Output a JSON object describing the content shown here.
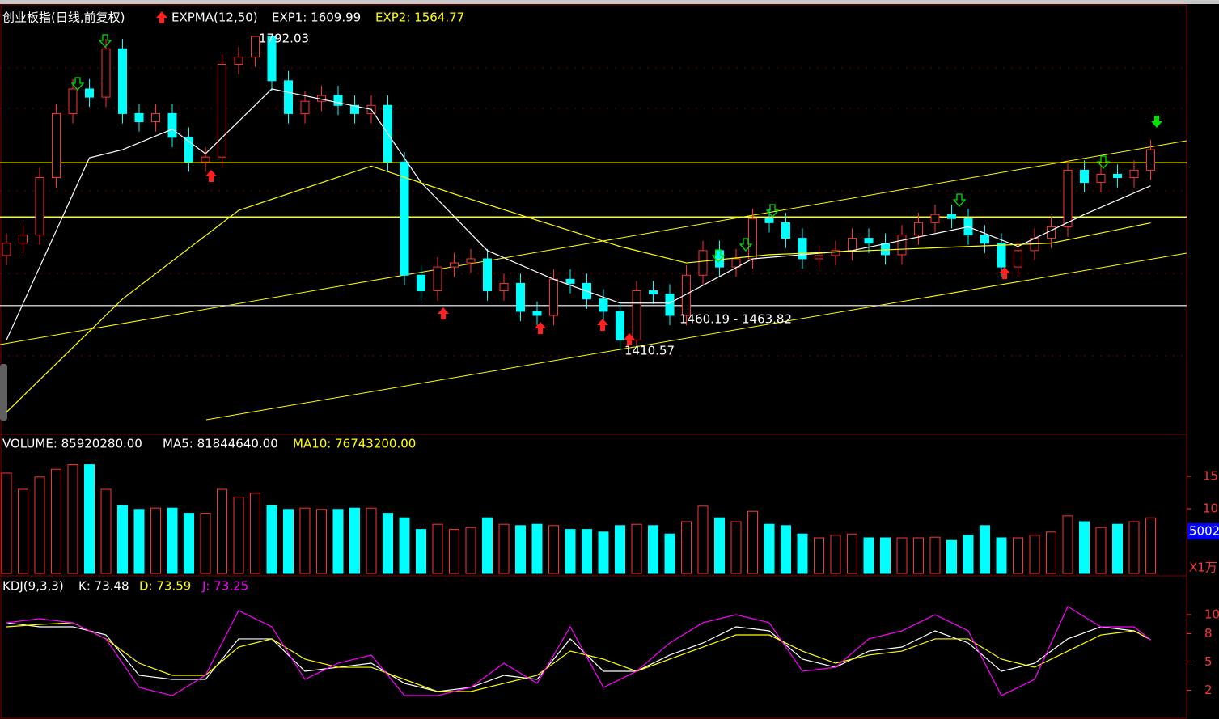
{
  "header": {
    "title": "创业板指(日线,前复权)",
    "indicator": "EXPMA(12,50)",
    "exp1": "EXP1: 1609.99",
    "exp2": "EXP2: 1564.77"
  },
  "chart_data": [
    {
      "type": "candlestick",
      "ylim": [
        1309.04,
        1824.56
      ],
      "up_color": "#ff3232",
      "down_color": "#00ffff",
      "open": [
        1525,
        1540,
        1550,
        1620,
        1698,
        1728,
        1718,
        1777,
        1698,
        1688,
        1698,
        1669,
        1639,
        1645,
        1758,
        1767,
        1792,
        1738,
        1698,
        1713,
        1720,
        1708,
        1698,
        1708,
        1639,
        1501,
        1482,
        1511,
        1516,
        1521,
        1482,
        1491,
        1457,
        1452,
        1496,
        1491,
        1472,
        1457,
        1422,
        1482,
        1478,
        1452,
        1501,
        1531,
        1511,
        1521,
        1570,
        1565,
        1546,
        1521,
        1525,
        1531,
        1546,
        1540,
        1526,
        1550,
        1565,
        1575,
        1570,
        1550,
        1540,
        1511,
        1531,
        1546,
        1560,
        1629,
        1614,
        1624,
        1620,
        1629
      ],
      "high": [
        1552,
        1562,
        1632,
        1710,
        1740,
        1740,
        1789,
        1789,
        1710,
        1710,
        1710,
        1681,
        1657,
        1770,
        1779,
        1792.03,
        1792,
        1750,
        1725,
        1732,
        1732,
        1720,
        1720,
        1720,
        1651,
        1513,
        1523,
        1528,
        1533,
        1533,
        1503,
        1503,
        1469,
        1508,
        1508,
        1503,
        1484,
        1469,
        1494,
        1494,
        1490,
        1513,
        1543,
        1543,
        1533,
        1582,
        1582,
        1577,
        1558,
        1537,
        1543,
        1558,
        1558,
        1552,
        1562,
        1577,
        1587,
        1587,
        1582,
        1562,
        1552,
        1543,
        1558,
        1572,
        1641,
        1641,
        1636,
        1636,
        1641,
        1666
      ],
      "low": [
        1513,
        1528,
        1538,
        1608,
        1686,
        1706,
        1706,
        1686,
        1676,
        1676,
        1657,
        1627,
        1627,
        1633,
        1746,
        1755,
        1726,
        1686,
        1686,
        1701,
        1696,
        1686,
        1686,
        1627,
        1489,
        1470,
        1470,
        1499,
        1504,
        1470,
        1470,
        1445,
        1440,
        1440,
        1479,
        1460,
        1445,
        1410.57,
        1414,
        1466,
        1440,
        1440,
        1489,
        1499,
        1499,
        1509,
        1553,
        1534,
        1509,
        1509,
        1513,
        1519,
        1528,
        1514,
        1514,
        1538,
        1553,
        1558,
        1538,
        1528,
        1499,
        1499,
        1519,
        1534,
        1548,
        1602,
        1602,
        1608,
        1608,
        1617
      ],
      "close": [
        1540,
        1550,
        1620,
        1698,
        1728,
        1718,
        1777,
        1698,
        1688,
        1698,
        1669,
        1639,
        1645,
        1758,
        1767,
        1792,
        1738,
        1698,
        1713,
        1720,
        1708,
        1698,
        1708,
        1639,
        1501,
        1482,
        1511,
        1516,
        1521,
        1482,
        1491,
        1457,
        1452,
        1496,
        1491,
        1472,
        1457,
        1422,
        1482,
        1478,
        1452,
        1501,
        1531,
        1511,
        1521,
        1570,
        1565,
        1546,
        1521,
        1525,
        1531,
        1546,
        1540,
        1526,
        1550,
        1565,
        1575,
        1570,
        1550,
        1540,
        1511,
        1531,
        1546,
        1560,
        1629,
        1614,
        1624,
        1620,
        1629,
        1654
      ],
      "lines": [
        {
          "color": "#ffffff",
          "x": [
            0,
            5,
            7,
            10,
            12,
            16,
            22,
            25,
            29,
            33,
            37,
            40,
            45,
            51,
            58,
            61,
            65,
            69
          ],
          "values": [
            1422,
            1644,
            1654,
            1679,
            1649,
            1728,
            1703,
            1614,
            1531,
            1496,
            1467,
            1467,
            1521,
            1531,
            1560,
            1536,
            1575,
            1609.99
          ]
        },
        {
          "color": "#ffff00",
          "x": [
            0,
            7,
            14,
            22,
            27,
            37,
            41,
            46,
            58,
            63,
            69
          ],
          "values": [
            1334,
            1472,
            1580,
            1634,
            1600,
            1536,
            1516,
            1526,
            1536,
            1540,
            1564.77
          ]
        }
      ],
      "levels": [
        {
          "value": 1638,
          "color": "#ffff00"
        },
        {
          "value": 1572,
          "color": "#ffff00"
        },
        {
          "value": 1464,
          "color": "#c0c0c0"
        }
      ],
      "annotations": [
        "1792.03",
        "1410.57",
        "1460.19 - 1463.82"
      ]
    },
    {
      "type": "bar",
      "title": "VOLUME: 85920280.00",
      "ma5": "MA5: 81844640.00",
      "ma10": "MA10: 76743200.00",
      "ylim": [
        0,
        211250000
      ],
      "yticks": [
        {
          "value": 150000000,
          "label": "15"
        },
        {
          "value": 100000000,
          "label": "10"
        }
      ],
      "current": "5002",
      "unit": "X1万",
      "values": [
        155000000,
        130000000,
        149000000,
        161000000,
        168000000,
        168000000,
        130000000,
        105000000,
        99000000,
        101000000,
        101000000,
        93000000,
        93000000,
        130000000,
        118000000,
        124000000,
        105000000,
        99000000,
        101000000,
        99000000,
        99000000,
        101000000,
        101000000,
        93000000,
        86000000,
        68000000,
        76000000,
        68000000,
        71000000,
        86000000,
        76000000,
        74000000,
        76000000,
        74000000,
        68000000,
        68000000,
        64000000,
        74000000,
        76000000,
        74000000,
        61000000,
        80000000,
        104000000,
        86000000,
        80000000,
        96000000,
        76000000,
        74000000,
        61000000,
        55000000,
        59000000,
        61000000,
        55000000,
        55000000,
        55000000,
        55000000,
        56000000,
        51000000,
        59000000,
        74000000,
        55000000,
        55000000,
        59000000,
        64000000,
        89000000,
        80000000,
        71000000,
        76000000,
        80000000,
        85920280
      ]
    },
    {
      "type": "line",
      "title": "KDJ(9,3,3)",
      "k": "K: 73.48",
      "d": "D: 73.59",
      "j": "J: 73.25",
      "ylim": [
        0,
        137.6
      ],
      "yticks": [
        {
          "value": 100,
          "label": "10"
        },
        {
          "value": 80,
          "label": "8"
        },
        {
          "value": 50,
          "label": "5"
        },
        {
          "value": 20,
          "label": "2"
        }
      ],
      "x": [
        0,
        2,
        4,
        6,
        8,
        10,
        12,
        14,
        16,
        18,
        20,
        22,
        24,
        26,
        28,
        30,
        32,
        34,
        36,
        38,
        40,
        42,
        44,
        46,
        48,
        50,
        52,
        54,
        56,
        58,
        60,
        62,
        64,
        66,
        68,
        69
      ],
      "series": [
        {
          "color": "#ffffff",
          "values": [
            91.5,
            87.2,
            87.2,
            78.6,
            35.9,
            31.6,
            31.6,
            74.4,
            74.4,
            40.2,
            44.4,
            48.7,
            27.4,
            18.8,
            23.1,
            35.9,
            31.6,
            74.4,
            40.2,
            40.2,
            57.3,
            70.1,
            87.2,
            82.9,
            53.0,
            44.4,
            61.5,
            65.8,
            82.9,
            70.1,
            40.2,
            48.7,
            74.4,
            87.2,
            82.9,
            73.48
          ]
        },
        {
          "color": "#ffff00",
          "values": [
            87.2,
            89.7,
            91.5,
            74.4,
            48.7,
            35.9,
            35.9,
            65.8,
            74.4,
            53.0,
            44.4,
            44.4,
            31.6,
            18.8,
            18.8,
            27.4,
            35.9,
            61.5,
            53.0,
            40.2,
            53.0,
            65.8,
            78.6,
            78.6,
            61.5,
            48.7,
            57.3,
            61.5,
            74.4,
            74.4,
            53.0,
            44.4,
            61.5,
            78.6,
            82.9,
            73.59
          ]
        },
        {
          "color": "#ff00ff",
          "values": [
            91.5,
            95.7,
            91.5,
            74.4,
            23.1,
            14.5,
            35.9,
            104.3,
            87.2,
            31.6,
            48.7,
            57.3,
            14.5,
            14.5,
            23.1,
            48.7,
            27.4,
            87.2,
            23.1,
            40.2,
            70.1,
            91.5,
            100,
            91.5,
            40.2,
            44.4,
            74.4,
            82.9,
            100,
            82.9,
            14.5,
            31.6,
            108.5,
            87.2,
            87.2,
            73.25
          ]
        }
      ]
    }
  ]
}
